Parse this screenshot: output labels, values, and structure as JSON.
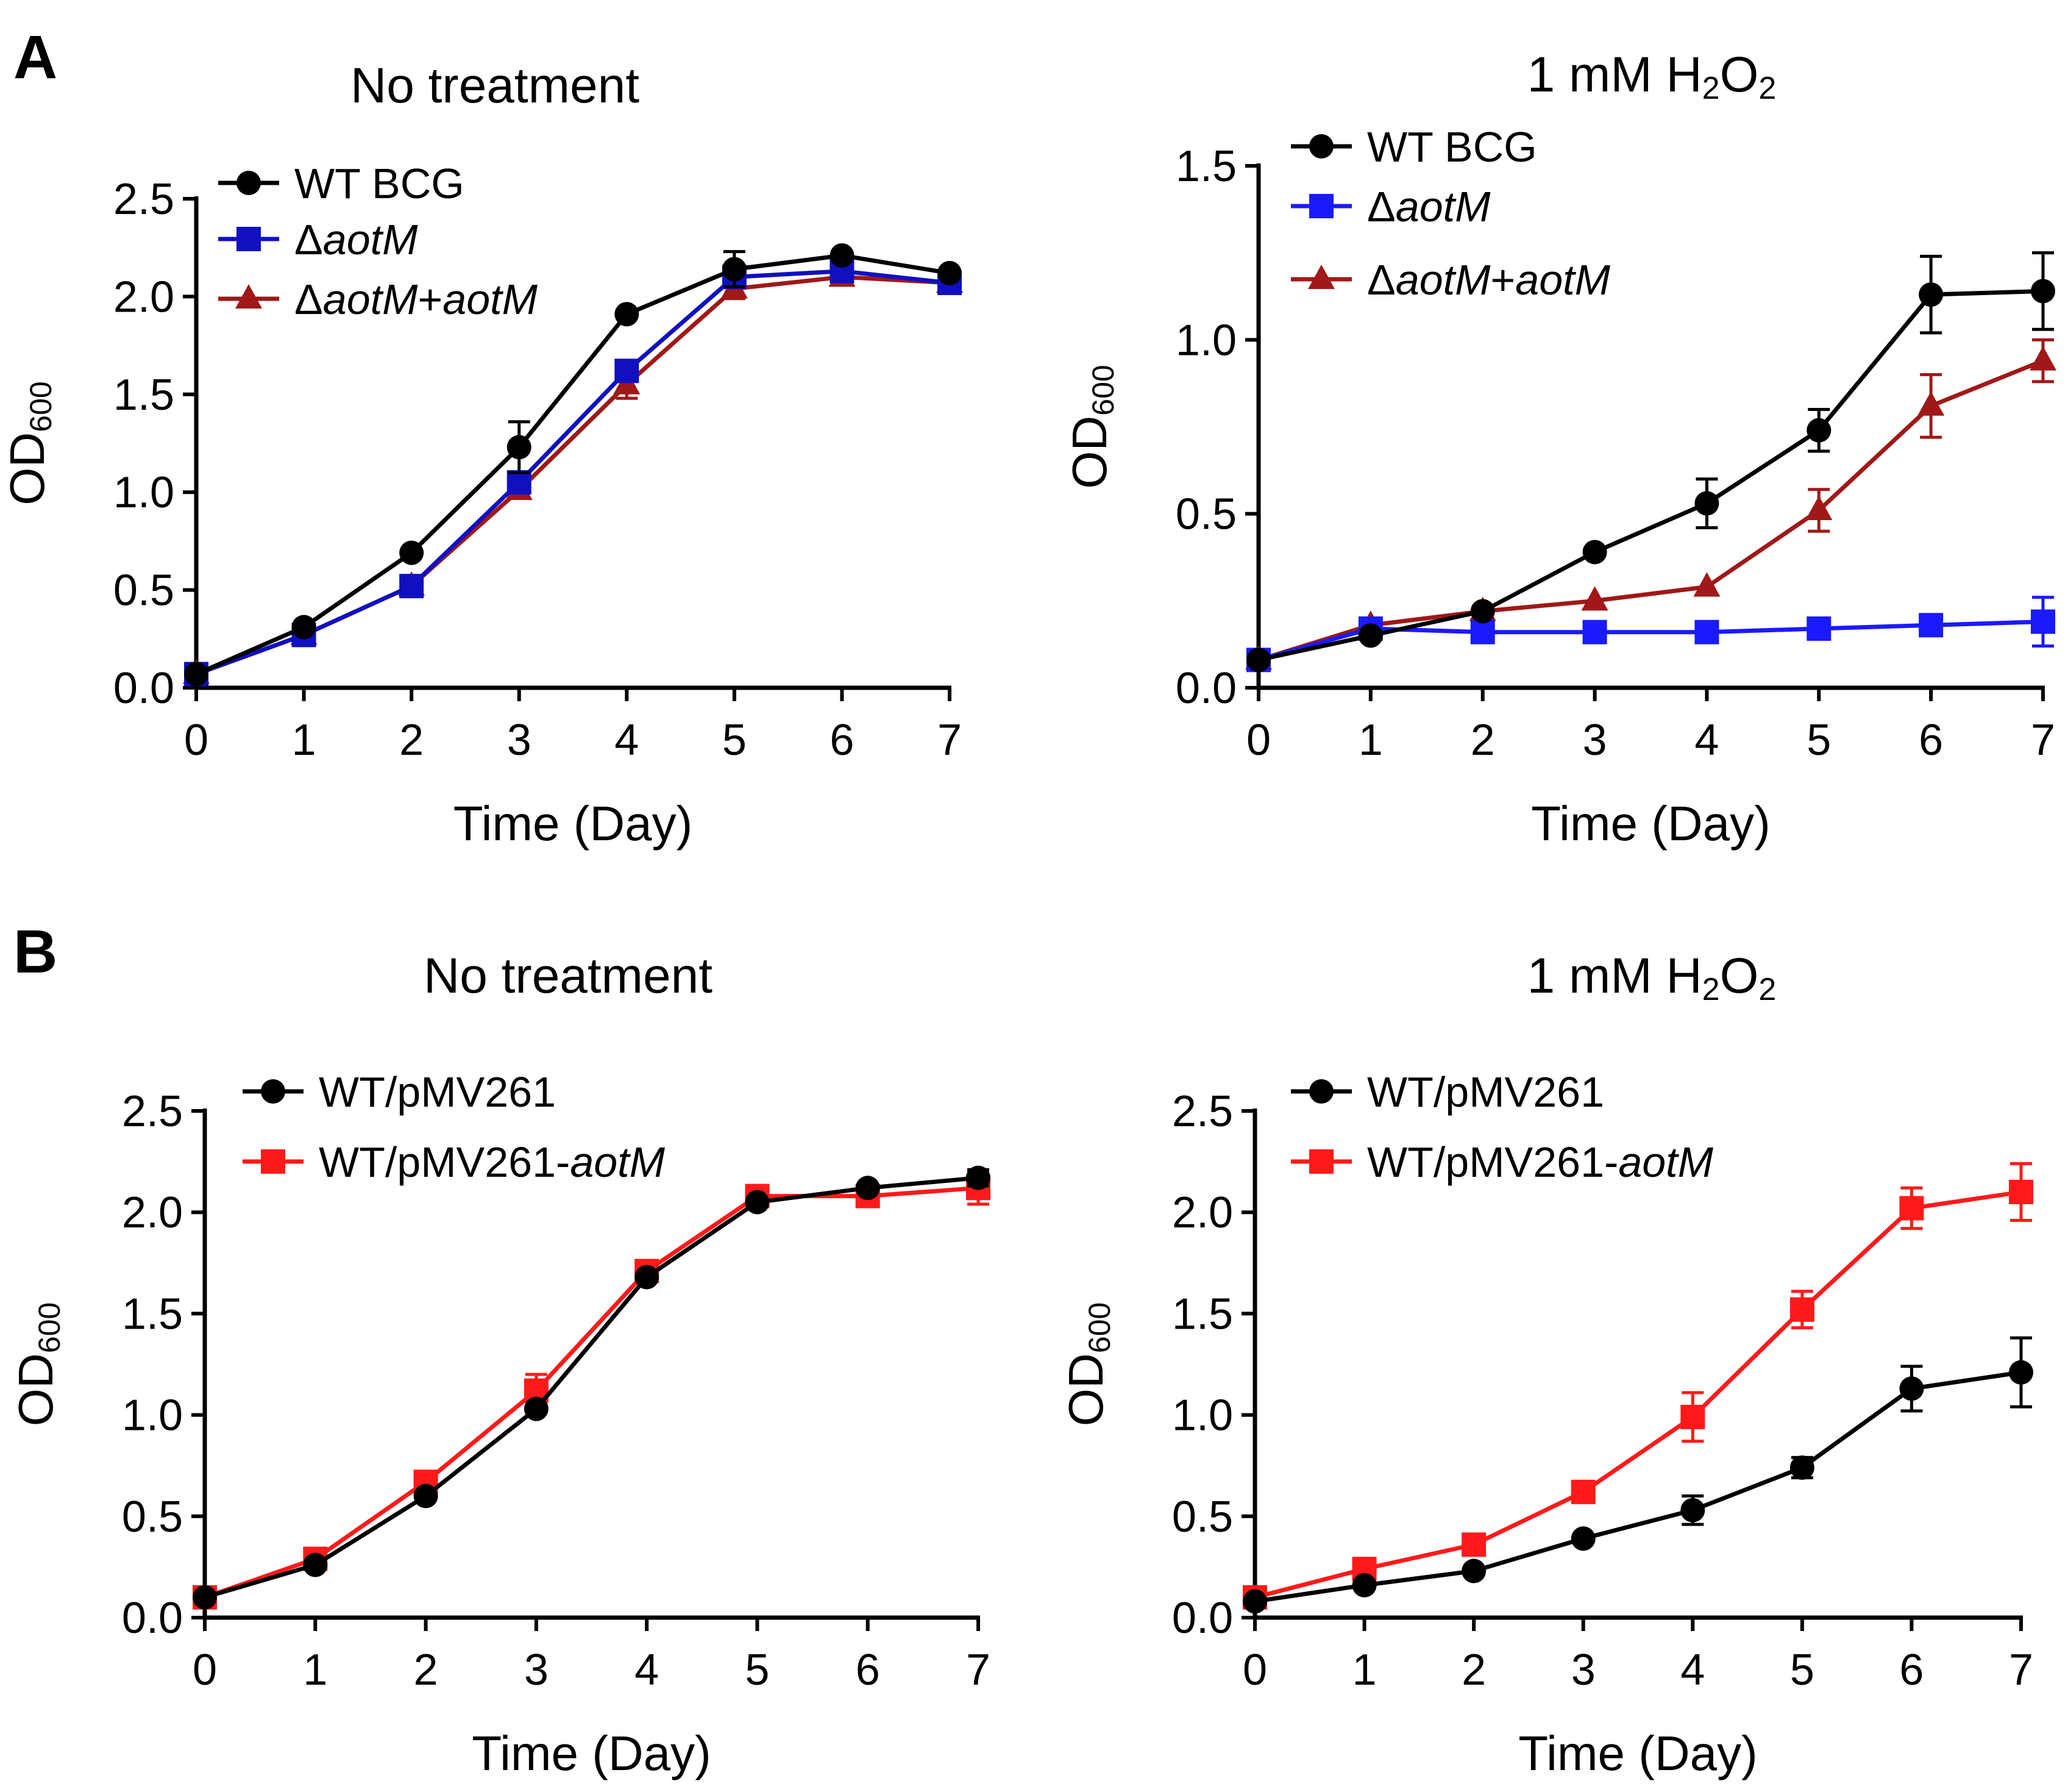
{
  "figure": {
    "panels": [
      {
        "letter": "A"
      },
      {
        "letter": "B"
      }
    ]
  },
  "chart_data": [
    {
      "type": "line",
      "panel": "A",
      "title": "No treatment",
      "xlabel": "Time (Day)",
      "ylabel": "OD600",
      "ylabel_parts": {
        "main": "OD",
        "sub": "600"
      },
      "x": [
        0,
        1,
        2,
        3,
        4,
        5,
        6,
        7
      ],
      "xlim": [
        0,
        7
      ],
      "ylim": [
        0,
        2.5
      ],
      "xticks": [
        "0",
        "1",
        "2",
        "3",
        "4",
        "5",
        "6",
        "7"
      ],
      "yticks": [
        "0.0",
        "0.5",
        "1.0",
        "1.5",
        "2.0",
        "2.5"
      ],
      "legend_position": "top-left",
      "series": [
        {
          "name": "WT BCG",
          "label_parts": [
            {
              "t": "WT BCG",
              "i": false
            }
          ],
          "color": "#000000",
          "marker": "circle",
          "values": [
            0.07,
            0.31,
            0.69,
            1.23,
            1.91,
            2.14,
            2.21,
            2.12
          ],
          "errors": [
            0,
            0,
            0,
            0.13,
            0,
            0.09,
            0,
            0
          ]
        },
        {
          "name": "ΔaotM",
          "label_parts": [
            {
              "t": "Δ",
              "i": false
            },
            {
              "t": "aotM",
              "i": true
            }
          ],
          "color": "#1010c0",
          "marker": "square",
          "values": [
            0.07,
            0.27,
            0.52,
            1.05,
            1.62,
            2.1,
            2.13,
            2.07
          ],
          "errors": [
            0,
            0,
            0,
            0.04,
            0.04,
            0.05,
            0,
            0
          ]
        },
        {
          "name": "ΔaotM+aotM",
          "label_parts": [
            {
              "t": "Δ",
              "i": false
            },
            {
              "t": "aotM",
              "i": true
            },
            {
              "t": "+",
              "i": false
            },
            {
              "t": "aotM",
              "i": true
            }
          ],
          "color": "#a01818",
          "marker": "triangle",
          "values": [
            0.07,
            0.27,
            0.52,
            1.01,
            1.55,
            2.04,
            2.1,
            2.07
          ],
          "errors": [
            0,
            0,
            0,
            0.04,
            0.07,
            0.05,
            0.04,
            0
          ]
        }
      ]
    },
    {
      "type": "line",
      "panel": "A",
      "title": "1 mM H2O2",
      "title_parts": [
        {
          "t": "1 mM H",
          "s": false
        },
        {
          "t": "2",
          "s": true
        },
        {
          "t": "O",
          "s": false
        },
        {
          "t": "2",
          "s": true
        }
      ],
      "xlabel": "Time (Day)",
      "ylabel": "OD600",
      "ylabel_parts": {
        "main": "OD",
        "sub": "600"
      },
      "x": [
        0,
        1,
        2,
        3,
        4,
        5,
        6,
        7
      ],
      "xlim": [
        0,
        7
      ],
      "ylim": [
        0,
        1.5
      ],
      "xticks": [
        "0",
        "1",
        "2",
        "3",
        "4",
        "5",
        "6",
        "7"
      ],
      "yticks": [
        "0.0",
        "0.5",
        "1.0",
        "1.5"
      ],
      "legend_position": "top-left",
      "series": [
        {
          "name": "WT BCG",
          "label_parts": [
            {
              "t": "WT BCG",
              "i": false
            }
          ],
          "color": "#000000",
          "marker": "circle",
          "values": [
            0.08,
            0.15,
            0.22,
            0.39,
            0.53,
            0.74,
            1.13,
            1.14
          ],
          "errors": [
            0,
            0,
            0,
            0,
            0.07,
            0.06,
            0.11,
            0.11
          ]
        },
        {
          "name": "ΔaotM",
          "label_parts": [
            {
              "t": "Δ",
              "i": false
            },
            {
              "t": "aotM",
              "i": true
            }
          ],
          "color": "#1a1aff",
          "marker": "square",
          "values": [
            0.08,
            0.17,
            0.16,
            0.16,
            0.16,
            0.17,
            0.18,
            0.19
          ],
          "errors": [
            0,
            0,
            0,
            0,
            0,
            0,
            0.03,
            0.07
          ]
        },
        {
          "name": "ΔaotM+aotM",
          "label_parts": [
            {
              "t": "Δ",
              "i": false
            },
            {
              "t": "aotM",
              "i": true
            },
            {
              "t": "+",
              "i": false
            },
            {
              "t": "aotM",
              "i": true
            }
          ],
          "color": "#a01818",
          "marker": "triangle",
          "values": [
            0.08,
            0.18,
            0.22,
            0.25,
            0.29,
            0.51,
            0.81,
            0.94
          ],
          "errors": [
            0,
            0,
            0,
            0,
            0,
            0.06,
            0.09,
            0.06
          ]
        }
      ]
    },
    {
      "type": "line",
      "panel": "B",
      "title": "No treatment",
      "xlabel": "Time (Day)",
      "ylabel": "OD600",
      "ylabel_parts": {
        "main": "OD",
        "sub": "600"
      },
      "x": [
        0,
        1,
        2,
        3,
        4,
        5,
        6,
        7
      ],
      "xlim": [
        0,
        7
      ],
      "ylim": [
        0,
        2.5
      ],
      "xticks": [
        "0",
        "1",
        "2",
        "3",
        "4",
        "5",
        "6",
        "7"
      ],
      "yticks": [
        "0.0",
        "0.5",
        "1.0",
        "1.5",
        "2.0",
        "2.5"
      ],
      "legend_position": "top-left",
      "series": [
        {
          "name": "WT/pMV261",
          "label_parts": [
            {
              "t": "WT/pMV261",
              "i": false
            }
          ],
          "color": "#000000",
          "marker": "circle",
          "values": [
            0.1,
            0.26,
            0.6,
            1.03,
            1.68,
            2.05,
            2.12,
            2.17
          ],
          "errors": [
            0,
            0,
            0,
            0,
            0,
            0,
            0,
            0.04
          ]
        },
        {
          "name": "WT/pMV261-aotM",
          "label_parts": [
            {
              "t": "WT/pMV261-",
              "i": false
            },
            {
              "t": "aotM",
              "i": true
            }
          ],
          "color": "#ff1a1a",
          "marker": "square",
          "values": [
            0.1,
            0.29,
            0.67,
            1.12,
            1.71,
            2.08,
            2.08,
            2.12
          ],
          "errors": [
            0,
            0,
            0,
            0.08,
            0,
            0,
            0.04,
            0.08
          ]
        }
      ]
    },
    {
      "type": "line",
      "panel": "B",
      "title": "1 mM H2O2",
      "title_parts": [
        {
          "t": "1 mM H",
          "s": false
        },
        {
          "t": "2",
          "s": true
        },
        {
          "t": "O",
          "s": false
        },
        {
          "t": "2",
          "s": true
        }
      ],
      "xlabel": "Time (Day)",
      "ylabel": "OD600",
      "ylabel_parts": {
        "main": "OD",
        "sub": "600"
      },
      "x": [
        0,
        1,
        2,
        3,
        4,
        5,
        6,
        7
      ],
      "xlim": [
        0,
        7
      ],
      "ylim": [
        0,
        2.5
      ],
      "xticks": [
        "0",
        "1",
        "2",
        "3",
        "4",
        "5",
        "6",
        "7"
      ],
      "yticks": [
        "0.0",
        "0.5",
        "1.0",
        "1.5",
        "2.0",
        "2.5"
      ],
      "legend_position": "top-left",
      "series": [
        {
          "name": "WT/pMV261",
          "label_parts": [
            {
              "t": "WT/pMV261",
              "i": false
            }
          ],
          "color": "#000000",
          "marker": "circle",
          "values": [
            0.08,
            0.16,
            0.23,
            0.39,
            0.53,
            0.74,
            1.13,
            1.21
          ],
          "errors": [
            0,
            0,
            0,
            0,
            0.07,
            0.05,
            0.11,
            0.17
          ]
        },
        {
          "name": "WT/pMV261-aotM",
          "label_parts": [
            {
              "t": "WT/pMV261-",
              "i": false
            },
            {
              "t": "aotM",
              "i": true
            }
          ],
          "color": "#ff1a1a",
          "marker": "square",
          "values": [
            0.1,
            0.24,
            0.36,
            0.62,
            0.99,
            1.52,
            2.02,
            2.1
          ],
          "errors": [
            0,
            0,
            0,
            0,
            0.12,
            0.09,
            0.1,
            0.14
          ]
        }
      ]
    }
  ]
}
